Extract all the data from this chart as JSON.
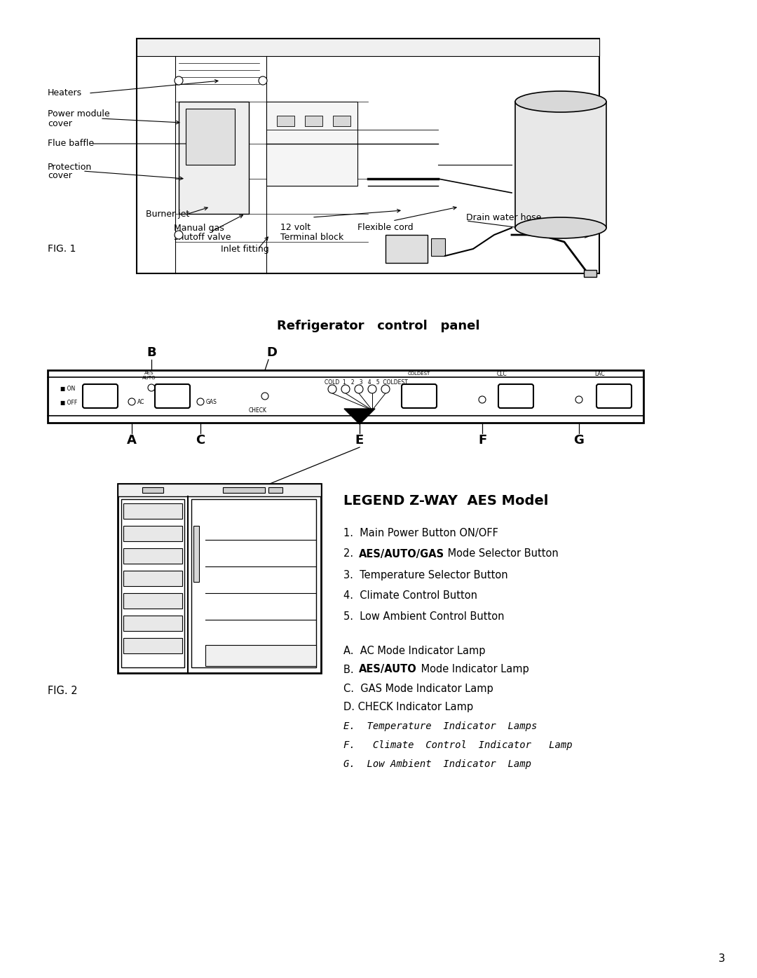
{
  "bg_color": "#ffffff",
  "page_number": "3",
  "fig1_label": "FIG. 1",
  "fig2_label": "FIG. 2",
  "section_title": "Refrigerator   control   panel",
  "legend_title": "LEGEND Z-WAY  AES Model",
  "legend_items": [
    "1.  Main Power Button ON/OFF",
    "2.  AES/AUTO/GAS Mode Selector Button",
    "3.  Temperature Selector Button",
    "4.  Climate Control Button",
    "5.  Low Ambient Control Button"
  ],
  "legend_items2": [
    "A.  AC Mode Indicator Lamp",
    "B.  AES/AUTO Mode Indicator Lamp",
    "C.  GAS Mode Indicator Lamp",
    "D. CHECK Indicator Lamp",
    "E.  Temperature  Indicator  Lamps",
    "F.   Climate  Control  Indicator   Lamp",
    "G.  Low Ambient  Indicator  Lamp"
  ]
}
